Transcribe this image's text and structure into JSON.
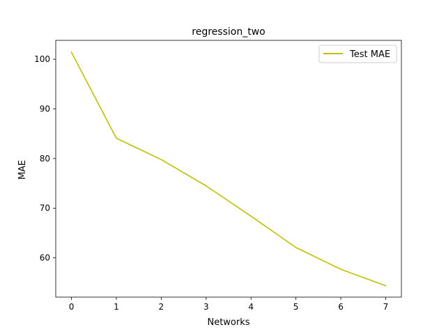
{
  "chart_data": {
    "type": "line",
    "title": "regression_two",
    "xlabel": "Networks",
    "ylabel": "MAE",
    "x": [
      0,
      1,
      2,
      3,
      4,
      5,
      6,
      7
    ],
    "xlim": [
      -0.35,
      7.35
    ],
    "ylim": [
      52.1,
      103.8
    ],
    "xticks": [
      0,
      1,
      2,
      3,
      4,
      5,
      6,
      7
    ],
    "yticks": [
      60,
      70,
      80,
      90,
      100
    ],
    "grid": false,
    "legend_position": "top-right",
    "series": [
      {
        "name": "Test MAE",
        "color": "#bfbf00",
        "values": [
          101.4,
          84.1,
          79.8,
          74.5,
          68.4,
          62.1,
          57.7,
          54.4
        ]
      }
    ]
  }
}
